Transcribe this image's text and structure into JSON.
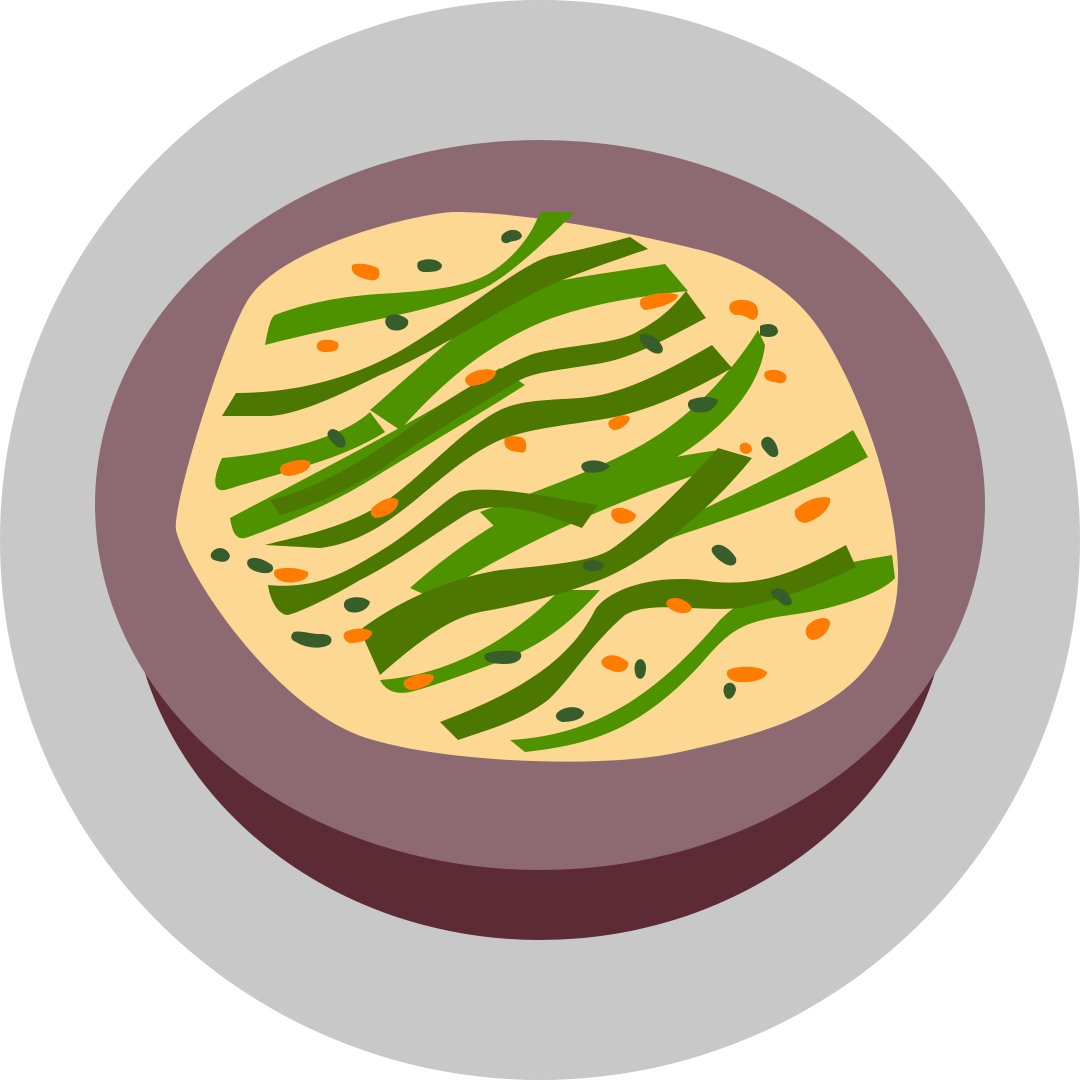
{
  "illustration": {
    "subject": "green-bean-dish-icon",
    "colors": {
      "plate": "#C8C8C8",
      "bowl_side": "#5C2B36",
      "bowl_rim": "#8D6A71",
      "cream_sauce": "#FDD893",
      "bean_light": "#4E9200",
      "bean_dark": "#4C7700",
      "carrot_bits": "#FF7C00",
      "herb_flecks": "#375D2B"
    }
  }
}
